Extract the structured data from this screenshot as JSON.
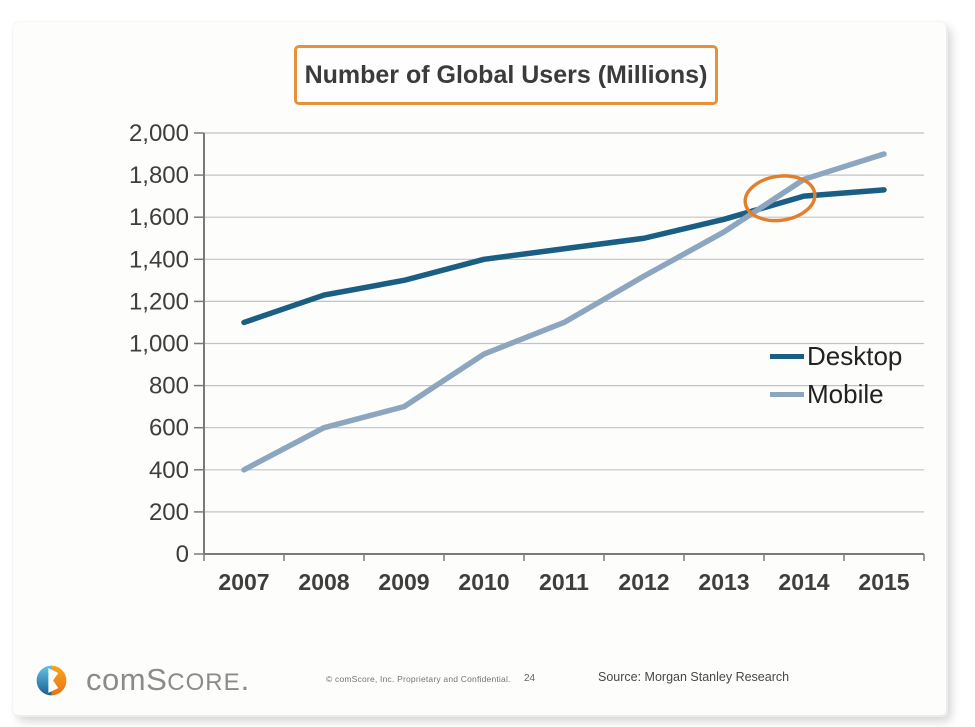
{
  "slide": {
    "title": "Number of Global Users (Millions)"
  },
  "chart_data": {
    "type": "line",
    "title": "Number of Global Users (Millions)",
    "x": [
      2007,
      2008,
      2009,
      2010,
      2011,
      2012,
      2013,
      2014,
      2015
    ],
    "series": [
      {
        "name": "Desktop",
        "color": "#1b5e83",
        "values": [
          1100,
          1230,
          1300,
          1400,
          1450,
          1500,
          1590,
          1700,
          1730
        ]
      },
      {
        "name": "Mobile",
        "color": "#8ca6c0",
        "values": [
          400,
          600,
          700,
          950,
          1100,
          1320,
          1530,
          1780,
          1900
        ]
      }
    ],
    "ylim": [
      0,
      2000
    ],
    "ytick_step": 200,
    "ytick_labels": [
      "0",
      "200",
      "400",
      "600",
      "800",
      "1,000",
      "1,200",
      "1,400",
      "1,600",
      "1,800",
      "2,000"
    ],
    "grid": true,
    "legend_position": "inside-right",
    "annotation": {
      "shape": "ellipse",
      "purpose": "highlight-desktop-mobile-crossover",
      "x_year": 2013.7,
      "y_value": 1690,
      "color": "#e0802c"
    }
  },
  "colors": {
    "title_border": "#e8913b",
    "grid": "#c3c3c3",
    "axis": "#7a7a7a",
    "tick_label": "#3e3e3e"
  },
  "footer": {
    "logo": {
      "com": "com",
      "score_cap": "S",
      "core": "CORE",
      "period": "."
    },
    "copyright": "© comScore, Inc.  Proprietary and Confidential.",
    "page_number": "24",
    "source": "Source: Morgan Stanley Research"
  }
}
